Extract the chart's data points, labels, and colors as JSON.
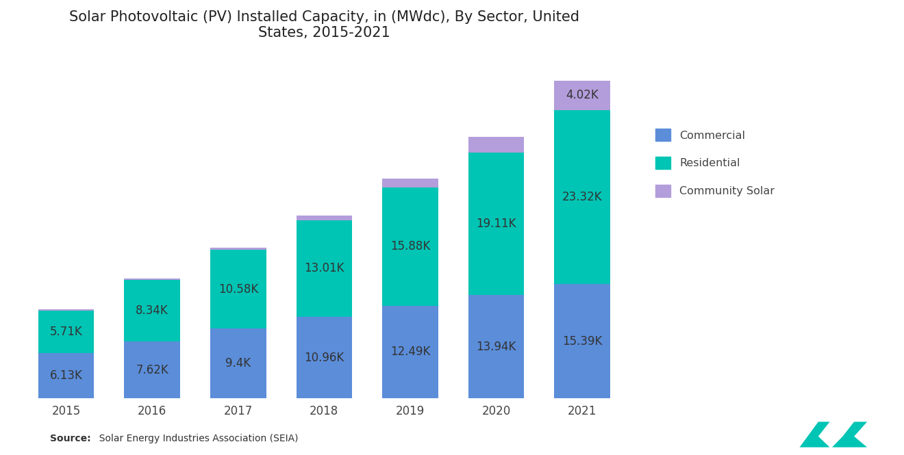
{
  "years": [
    "2015",
    "2016",
    "2017",
    "2018",
    "2019",
    "2020",
    "2021"
  ],
  "commercial": [
    6.13,
    7.62,
    9.4,
    10.96,
    12.49,
    13.94,
    15.39
  ],
  "residential": [
    5.71,
    8.34,
    10.58,
    13.01,
    15.88,
    19.11,
    23.32
  ],
  "community_solar": [
    0.1,
    0.15,
    0.3,
    0.6,
    1.2,
    2.1,
    4.02
  ],
  "commercial_color": "#5B8DD9",
  "residential_color": "#00C4B4",
  "community_solar_color": "#B39DDB",
  "title": "Solar Photovoltaic (PV) Installed Capacity, in (MWdc), By Sector, United\nStates, 2015-2021",
  "source_bold": "Source:",
  "source_rest": "  Solar Energy Industries Association (SEIA)",
  "legend_labels": [
    "Commercial",
    "Residential",
    "Community Solar"
  ],
  "background_color": "#ffffff",
  "bar_width": 0.65,
  "label_fontsize": 12,
  "title_fontsize": 15,
  "ylim": [
    0,
    46
  ],
  "community_label_threshold": 3.5,
  "logo_color": "#00C4B4"
}
